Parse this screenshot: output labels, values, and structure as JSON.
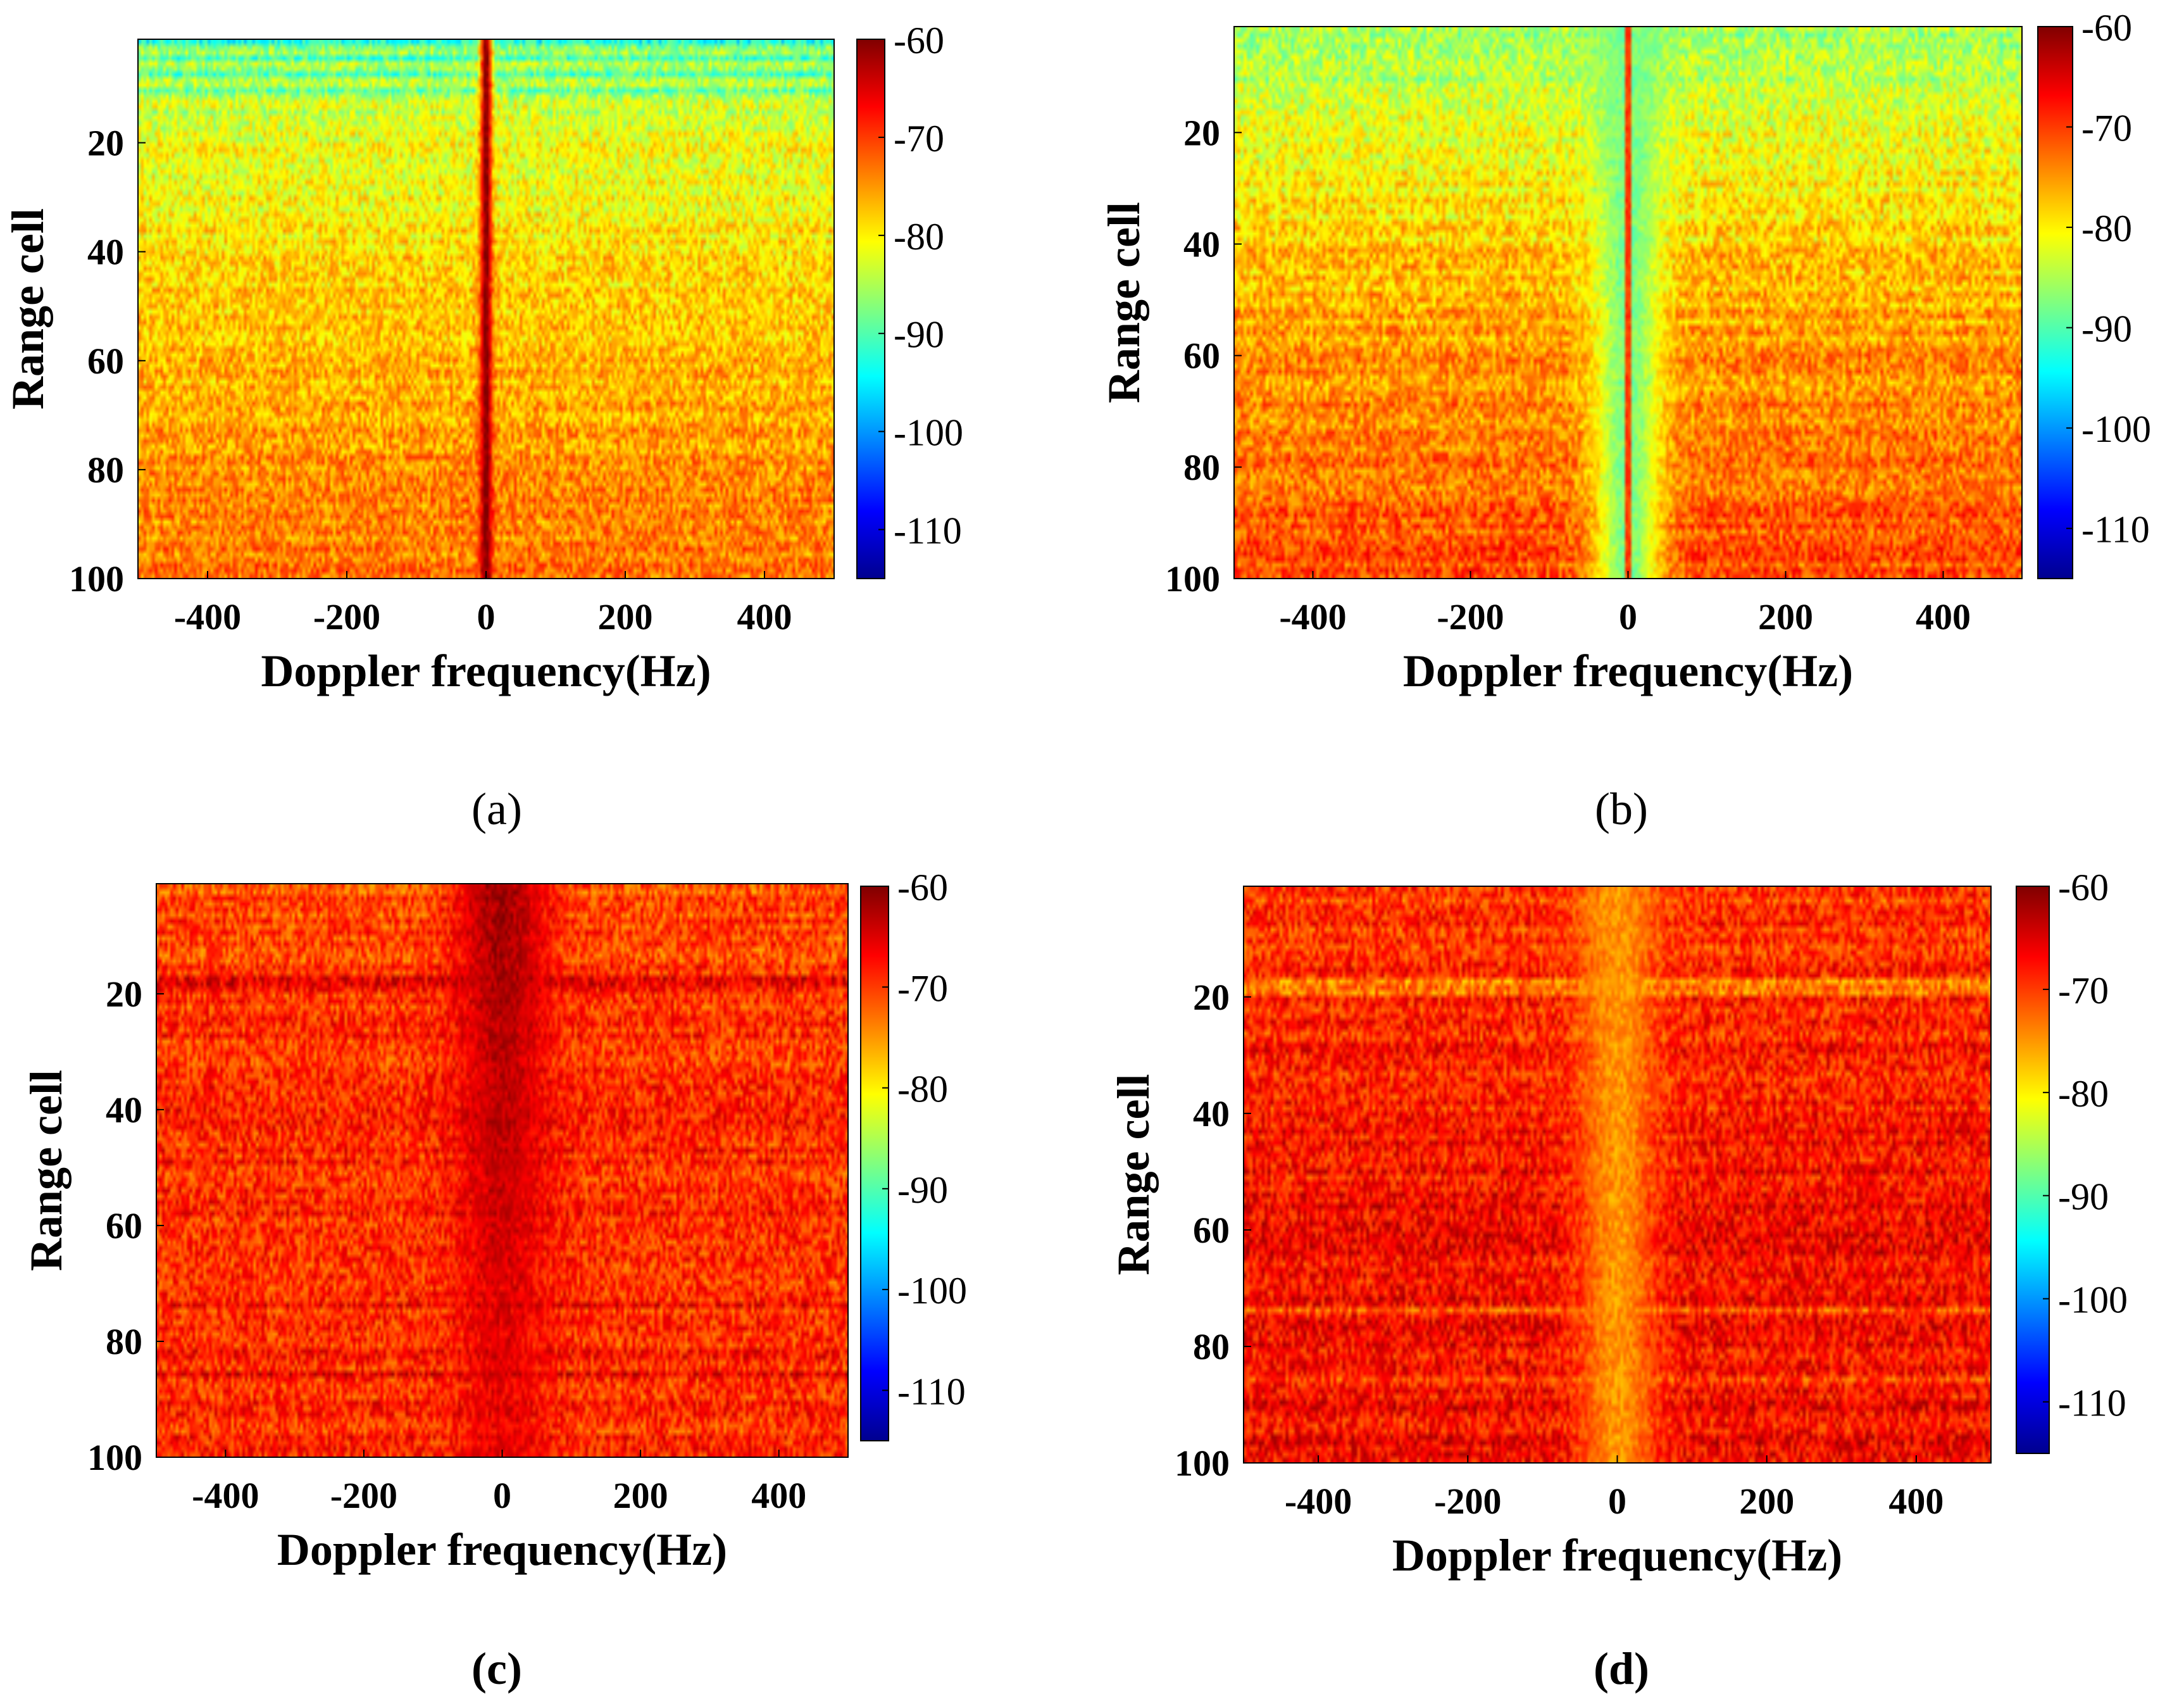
{
  "figure": {
    "colormap": "jet",
    "chart_data": [
      {
        "type": "heatmap",
        "panel_label": "(a)",
        "xlabel": "Doppler frequency(Hz)",
        "ylabel": "Range cell",
        "xlim": [
          -500,
          500
        ],
        "ylim": [
          1,
          100
        ],
        "xticks": [
          -400,
          -200,
          0,
          200,
          400
        ],
        "yticks": [
          20,
          40,
          60,
          80,
          100
        ],
        "colorbar": {
          "min": -115,
          "max": -60,
          "ticks": [
            -60,
            -70,
            -80,
            -90,
            -100,
            -110
          ]
        },
        "range_profile": {
          "range_cells": [
            1,
            20,
            40,
            60,
            80,
            100
          ],
          "background_dB": [
            -86,
            -82,
            -79,
            -77,
            -75,
            -73
          ]
        },
        "doppler_feature": {
          "center_hz": 0,
          "width_hz": 12,
          "level_dB": -60,
          "description": "narrow strong zero-Doppler clutter line"
        },
        "notes": "strong horizontal streaks near range cells 2-12"
      },
      {
        "type": "heatmap",
        "panel_label": "(b)",
        "xlabel": "Doppler frequency(Hz)",
        "ylabel": "Range cell",
        "xlim": [
          -500,
          500
        ],
        "ylim": [
          1,
          100
        ],
        "xticks": [
          -400,
          -200,
          0,
          200,
          400
        ],
        "yticks": [
          20,
          40,
          60,
          80,
          100
        ],
        "colorbar": {
          "min": -115,
          "max": -60,
          "ticks": [
            -60,
            -70,
            -80,
            -90,
            -100,
            -110
          ]
        },
        "range_profile": {
          "range_cells": [
            1,
            20,
            40,
            60,
            80,
            100
          ],
          "background_dB": [
            -86,
            -82,
            -78,
            -75,
            -73,
            -71
          ]
        },
        "doppler_feature": {
          "center_hz": 0,
          "width_hz": 60,
          "level_dB": -88,
          "description": "suppressed notch around zero Doppler with faint center line"
        },
        "notes": "clutter suppressed"
      },
      {
        "type": "heatmap",
        "panel_label": "(c)",
        "xlabel": "Doppler frequency(Hz)",
        "ylabel": "Range cell",
        "xlim": [
          -500,
          500
        ],
        "ylim": [
          1,
          100
        ],
        "xticks": [
          -400,
          -200,
          0,
          200,
          400
        ],
        "yticks": [
          20,
          40,
          60,
          80,
          100
        ],
        "colorbar": {
          "min": -115,
          "max": -60,
          "ticks": [
            -60,
            -70,
            -80,
            -90,
            -100,
            -110
          ]
        },
        "range_profile": {
          "range_cells": [
            1,
            20,
            40,
            60,
            80,
            100
          ],
          "background_dB": [
            -71,
            -70,
            -69,
            -69,
            -69,
            -69
          ]
        },
        "doppler_feature": {
          "center_hz": 0,
          "width_hz": 90,
          "level_dB": -63,
          "description": "broad enhanced band around zero Doppler, strongest at near range"
        },
        "notes": "horizontal lines near range cells 18, 74 and 86"
      },
      {
        "type": "heatmap",
        "panel_label": "(d)",
        "xlabel": "Doppler frequency(Hz)",
        "ylabel": "Range cell",
        "xlim": [
          -500,
          500
        ],
        "ylim": [
          1,
          100
        ],
        "xticks": [
          -400,
          -200,
          0,
          200,
          400
        ],
        "yticks": [
          20,
          40,
          60,
          80,
          100
        ],
        "colorbar": {
          "min": -115,
          "max": -60,
          "ticks": [
            -60,
            -70,
            -80,
            -90,
            -100,
            -110
          ]
        },
        "range_profile": {
          "range_cells": [
            1,
            20,
            40,
            60,
            80,
            100
          ],
          "background_dB": [
            -70,
            -69,
            -68,
            -67,
            -67,
            -67
          ]
        },
        "doppler_feature": {
          "center_hz": 0,
          "width_hz": 70,
          "level_dB": -75,
          "description": "weaker band around zero Doppler after suppression"
        },
        "notes": "horizontal lines near range cells 18, 74 and 86"
      }
    ]
  }
}
